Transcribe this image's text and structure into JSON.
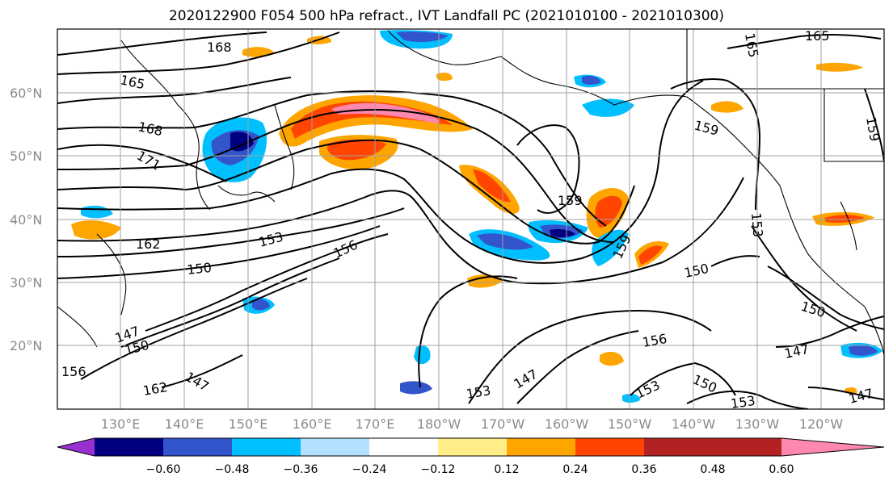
{
  "title": "2020122900 F054 500 hPa refract., IVT Landfall PC (2021010100 - 2021010300)",
  "latitude_labels": [
    "60°N",
    "50°N",
    "40°N",
    "30°N",
    "20°N"
  ],
  "longitude_labels": [
    "130°E",
    "140°E",
    "150°E",
    "160°E",
    "170°E",
    "180°W",
    "170°W",
    "160°W",
    "150°W",
    "140°W",
    "130°W",
    "120°W"
  ],
  "colorbar": {
    "tick_labels": [
      "−0.60",
      "−0.48",
      "−0.36",
      "−0.24",
      "−0.12",
      "0.12",
      "0.24",
      "0.36",
      "0.48",
      "0.60"
    ],
    "colors": [
      "#9b30d0",
      "#000080",
      "#3355cc",
      "#00bfff",
      "#b3e0ff",
      "#ffffff",
      "#ffee88",
      "#ffa500",
      "#ff4500",
      "#b22222",
      "#ff88b0"
    ]
  },
  "contour_labels": [
    "168",
    "165",
    "165",
    "165",
    "168",
    "171",
    "162",
    "150",
    "153",
    "156",
    "147",
    "150",
    "147",
    "162",
    "156",
    "159",
    "159",
    "159",
    "150",
    "153",
    "150",
    "147",
    "147",
    "156",
    "153",
    "150",
    "153",
    "147",
    "153",
    "159"
  ]
}
